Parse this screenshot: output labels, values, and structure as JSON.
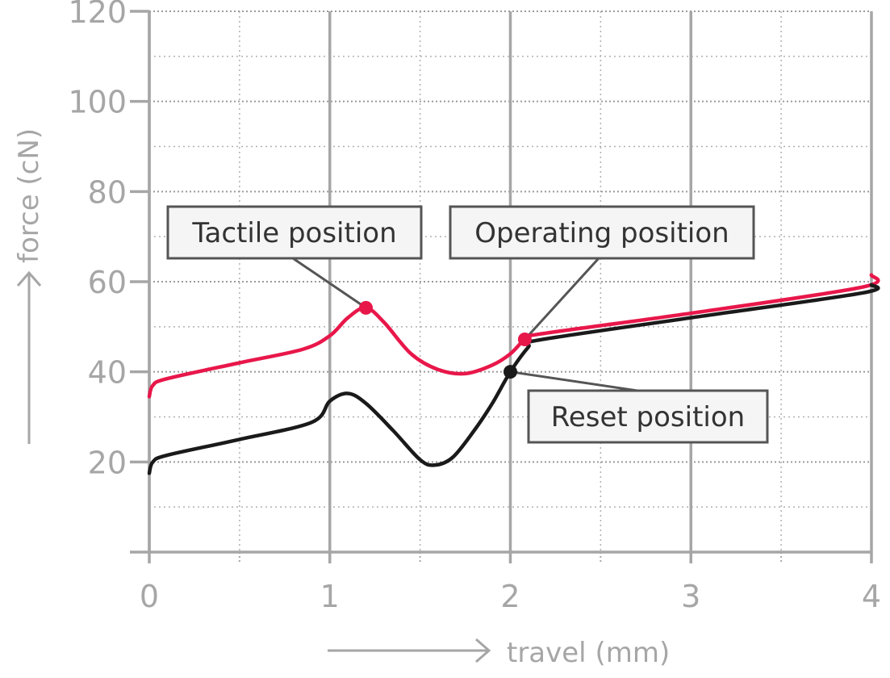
{
  "chart_data": {
    "type": "line",
    "xlabel": "travel (mm)",
    "ylabel": "force (cN)",
    "xlim": [
      0,
      4
    ],
    "ylim": [
      0,
      120
    ],
    "xticks": [
      0,
      1,
      2,
      3,
      4
    ],
    "yticks": [
      20,
      40,
      60,
      80,
      100,
      120
    ],
    "x_minor_gridlines": [
      0.5,
      1.5,
      2.5,
      3.5
    ],
    "y_minor_gridlines": [
      10,
      30,
      50,
      70,
      90,
      110
    ],
    "grid": true,
    "series": [
      {
        "color": "#e8174a",
        "points": [
          [
            0,
            34.5
          ],
          [
            0.02,
            37
          ],
          [
            0.1,
            38.5
          ],
          [
            0.5,
            42
          ],
          [
            0.85,
            45
          ],
          [
            1.0,
            48
          ],
          [
            1.1,
            52
          ],
          [
            1.2,
            54.2
          ],
          [
            1.3,
            51
          ],
          [
            1.45,
            44
          ],
          [
            1.6,
            40.5
          ],
          [
            1.75,
            39.6
          ],
          [
            1.9,
            41.5
          ],
          [
            2.0,
            44
          ],
          [
            2.08,
            47.2
          ],
          [
            2.15,
            48.3
          ],
          [
            3.0,
            53
          ],
          [
            3.95,
            58.8
          ],
          [
            4.0,
            61.5
          ]
        ]
      },
      {
        "color": "#1a1a1a",
        "points": [
          [
            0,
            17.5
          ],
          [
            0.02,
            20
          ],
          [
            0.1,
            21.5
          ],
          [
            0.5,
            25
          ],
          [
            0.9,
            28.8
          ],
          [
            1.0,
            33.5
          ],
          [
            1.1,
            35.2
          ],
          [
            1.2,
            33
          ],
          [
            1.35,
            27
          ],
          [
            1.5,
            20.5
          ],
          [
            1.58,
            19.3
          ],
          [
            1.68,
            21
          ],
          [
            1.8,
            27
          ],
          [
            1.9,
            33
          ],
          [
            2.0,
            40
          ],
          [
            2.1,
            45.5
          ],
          [
            2.15,
            47
          ],
          [
            3.0,
            52
          ],
          [
            3.95,
            57.5
          ],
          [
            4.0,
            59.3
          ]
        ]
      }
    ],
    "annotations": [
      {
        "label": "Tactile position",
        "point": [
          1.2,
          54.2
        ],
        "color": "#e8174a"
      },
      {
        "label": "Operating position",
        "point": [
          2.08,
          47.2
        ],
        "color": "#e8174a"
      },
      {
        "label": "Reset position",
        "point": [
          2.0,
          40
        ],
        "color": "#1a1a1a"
      }
    ]
  }
}
